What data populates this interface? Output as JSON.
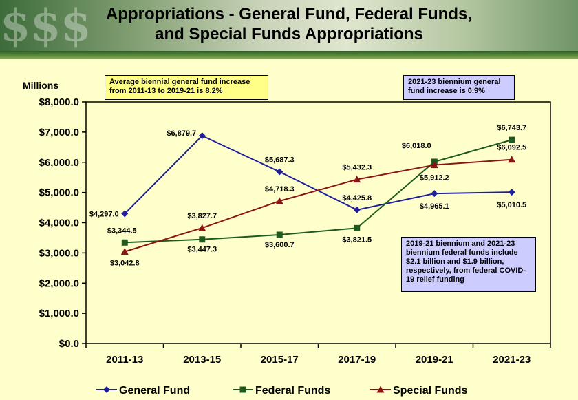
{
  "title_line1": "Appropriations - General Fund, Federal Funds,",
  "title_line2": "and Special Funds Appropriations",
  "y_unit_label": "Millions",
  "notes": {
    "avg_increase": "Average biennial general fund increase from 2011-13 to 2019-21 is 8.2%",
    "biennium_increase": "2021-23 biennium general fund increase is 0.9%",
    "covid": "2019-21 biennium and 2021-23 biennium federal funds include $2.1 billion and $1.9 billion, respectively, from federal COVID-19 relief funding"
  },
  "chart_data": {
    "type": "line",
    "title": "Appropriations - General Fund, Federal Funds, and Special Funds Appropriations",
    "ylabel": "Millions",
    "xlabel": "",
    "ylim": [
      0,
      8000
    ],
    "yticks": [
      "$0.0",
      "$1,000.0",
      "$2,000.0",
      "$3,000.0",
      "$4,000.0",
      "$5,000.0",
      "$6,000.0",
      "$7,000.0",
      "$8,000.0"
    ],
    "categories": [
      "2011-13",
      "2013-15",
      "2015-17",
      "2017-19",
      "2019-21",
      "2021-23"
    ],
    "grid": false,
    "legend_position": "bottom",
    "series": [
      {
        "name": "General Fund",
        "color": "#1f1f9c",
        "marker": "diamond",
        "values": [
          4297.0,
          6879.7,
          5687.3,
          4425.8,
          4965.1,
          5010.5
        ],
        "labels": [
          "$4,297.0",
          "$6,879.7",
          "$5,687.3",
          "$4,425.8",
          "$4,965.1",
          "$5,010.5"
        ]
      },
      {
        "name": "Federal Funds",
        "color": "#1e5a1e",
        "marker": "square",
        "values": [
          3344.5,
          3447.3,
          3600.7,
          3821.5,
          6018.0,
          6743.7
        ],
        "labels": [
          "$3,344.5",
          "$3,447.3",
          "$3,600.7",
          "$3,821.5",
          "$6,018.0",
          "$6,743.7"
        ]
      },
      {
        "name": "Special Funds",
        "color": "#8b1414",
        "marker": "triangle",
        "values": [
          3042.8,
          3827.7,
          4718.3,
          5432.3,
          5912.2,
          6092.5
        ],
        "labels": [
          "$3,042.8",
          "$3,827.7",
          "$4,718.3",
          "$5,432.3",
          "$5,912.2",
          "$6,092.5"
        ]
      }
    ]
  }
}
